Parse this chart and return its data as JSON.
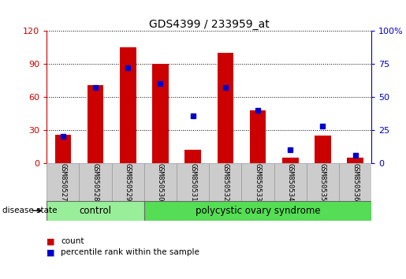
{
  "title": "GDS4399 / 233959_at",
  "samples": [
    "GSM850527",
    "GSM850528",
    "GSM850529",
    "GSM850530",
    "GSM850531",
    "GSM850532",
    "GSM850533",
    "GSM850534",
    "GSM850535",
    "GSM850536"
  ],
  "count_values": [
    26,
    71,
    105,
    90,
    12,
    100,
    48,
    5,
    25,
    5
  ],
  "percentile_values": [
    20,
    57,
    72,
    60,
    36,
    57,
    40,
    10,
    28,
    6
  ],
  "bar_color": "#cc0000",
  "dot_color": "#0000cc",
  "ylim_left": [
    0,
    120
  ],
  "ylim_right": [
    0,
    100
  ],
  "yticks_left": [
    0,
    30,
    60,
    90,
    120
  ],
  "ytick_labels_left": [
    "0",
    "30",
    "60",
    "90",
    "120"
  ],
  "yticks_right": [
    0,
    25,
    50,
    75,
    100
  ],
  "ytick_labels_right": [
    "0",
    "25",
    "50",
    "75",
    "100%"
  ],
  "left_axis_color": "#cc0000",
  "right_axis_color": "#0000cc",
  "control_label": "control",
  "disease_label": "polycystic ovary syndrome",
  "disease_state_label": "disease state",
  "legend_count": "count",
  "legend_percentile": "percentile rank within the sample",
  "control_count": 3,
  "disease_count": 7,
  "bar_width": 0.5,
  "bg_color": "#ffffff",
  "plot_bg": "#ffffff",
  "control_bg": "#99ee99",
  "disease_bg": "#55dd55"
}
